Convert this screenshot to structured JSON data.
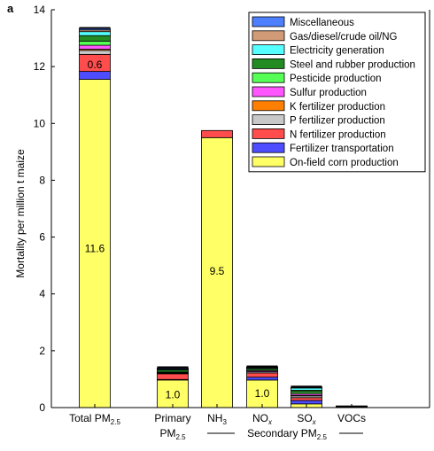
{
  "panel_label": "a",
  "chart_data": {
    "type": "bar",
    "stacked": true,
    "ylabel": "Mortality per million t maize",
    "ylim": [
      0,
      14
    ],
    "yticks": [
      0,
      2,
      4,
      6,
      8,
      10,
      12,
      14
    ],
    "grid": false,
    "legend_position": "top-right",
    "group_label": [
      "Secondary PM",
      "2.5"
    ],
    "categories": [
      {
        "label": "Total PM",
        "sub": "2.5",
        "group": "total"
      },
      {
        "label": "Primary",
        "line2": "PM",
        "line2_sub": "2.5",
        "group": "primary"
      },
      {
        "label": "NH",
        "sub": "3",
        "group": "secondary"
      },
      {
        "label": "NO",
        "sub": "x",
        "sub_italic": true,
        "group": "secondary"
      },
      {
        "label": "SO",
        "sub": "x",
        "sub_italic": true,
        "group": "secondary"
      },
      {
        "label": "VOCs",
        "group": "secondary"
      }
    ],
    "series": [
      {
        "name": "On-field corn production",
        "color": "#ffff66",
        "values": [
          11.55,
          0.97,
          9.5,
          0.97,
          0.13,
          0.02
        ]
      },
      {
        "name": "Fertilizer transportation",
        "color": "#4d4dff",
        "values": [
          0.28,
          0.02,
          0.0,
          0.1,
          0.12,
          0.01
        ]
      },
      {
        "name": "N fertilizer production",
        "color": "#ff4d4d",
        "values": [
          0.6,
          0.2,
          0.25,
          0.15,
          0.1,
          0.02
        ]
      },
      {
        "name": "P fertilizer production",
        "color": "#c8c8c8",
        "values": [
          0.14,
          0.02,
          0.0,
          0.04,
          0.06,
          0.0
        ]
      },
      {
        "name": "K fertilizer production",
        "color": "#ff8000",
        "values": [
          0.04,
          0.0,
          0.0,
          0.0,
          0.02,
          0.0
        ]
      },
      {
        "name": "Sulfur production",
        "color": "#ff55ff",
        "values": [
          0.14,
          0.02,
          0.0,
          0.04,
          0.06,
          0.0
        ]
      },
      {
        "name": "Pesticide production",
        "color": "#55ff55",
        "values": [
          0.14,
          0.02,
          0.0,
          0.04,
          0.06,
          0.0
        ]
      },
      {
        "name": "Steel and rubber production",
        "color": "#228b22",
        "values": [
          0.2,
          0.07,
          0.0,
          0.04,
          0.06,
          0.01
        ]
      },
      {
        "name": "Electricity generation",
        "color": "#55ffff",
        "values": [
          0.14,
          0.03,
          0.0,
          0.03,
          0.08,
          0.0
        ]
      },
      {
        "name": "Gas/diesel/crude oil/NG",
        "color": "#d29b77",
        "values": [
          0.06,
          0.02,
          0.0,
          0.01,
          0.01,
          0.0
        ]
      },
      {
        "name": "Miscellaneous",
        "color": "#4d7fff",
        "values": [
          0.05,
          0.03,
          0.0,
          0.01,
          0.02,
          0.0
        ]
      }
    ],
    "top_caps": [
      0.05,
      0.05,
      0.0,
      0.05,
      0.05,
      0.0
    ],
    "data_labels": [
      {
        "category": 0,
        "text": "0.6",
        "y": 12.07
      },
      {
        "category": 0,
        "text": "11.6",
        "y": 5.6
      },
      {
        "category": 1,
        "text": "1.0",
        "y": 0.45
      },
      {
        "category": 2,
        "text": "9.5",
        "y": 4.8
      },
      {
        "category": 3,
        "text": "1.0",
        "y": 0.5
      }
    ]
  }
}
